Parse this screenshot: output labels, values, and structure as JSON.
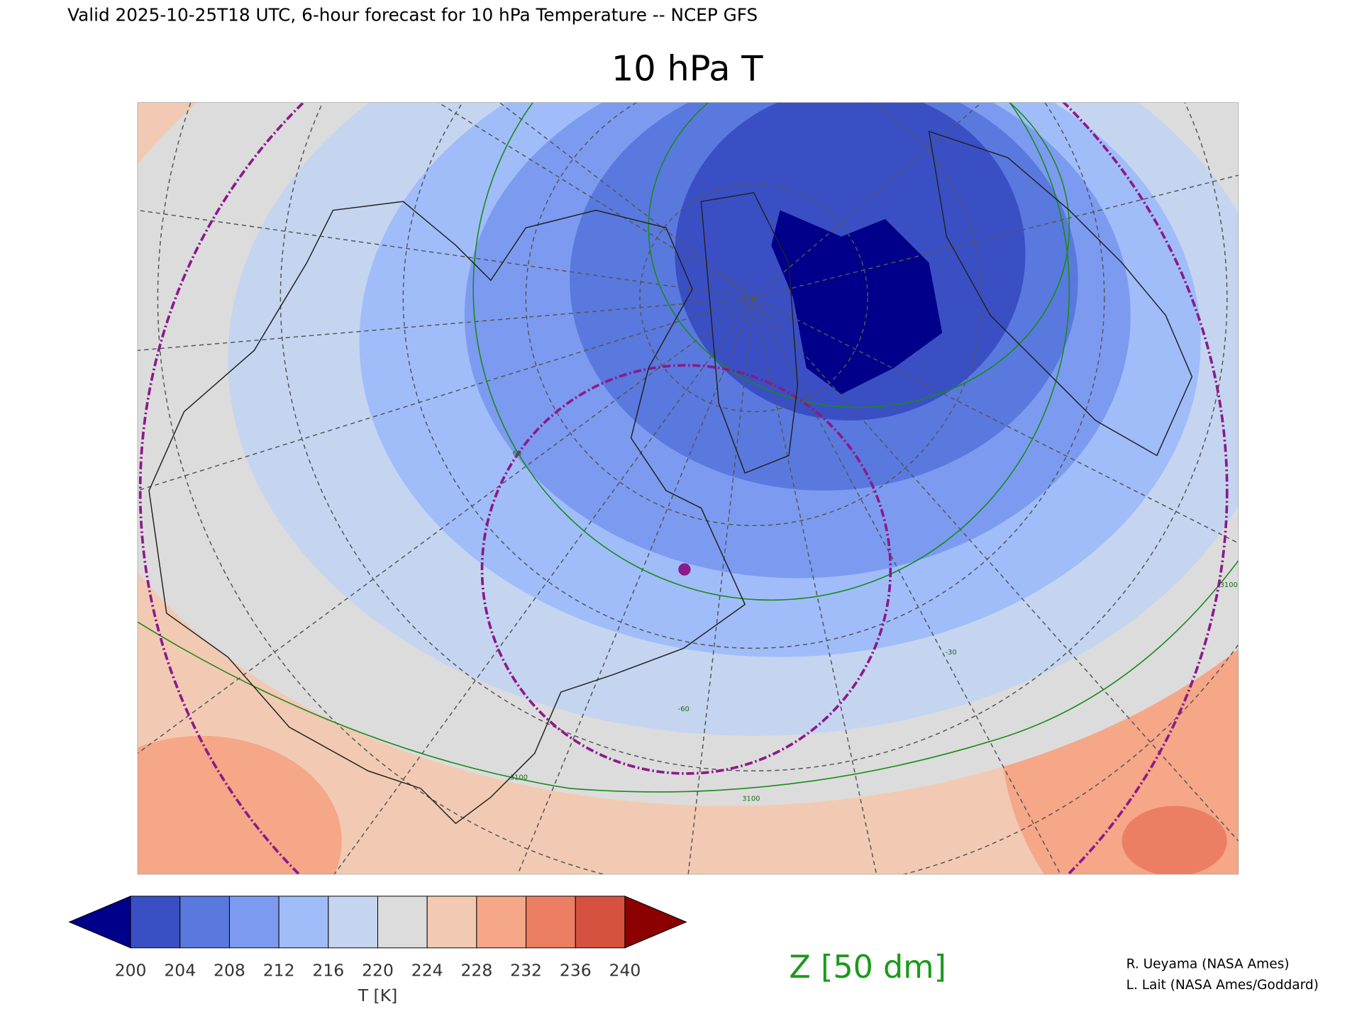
{
  "header": "Valid 2025-10-25T18 UTC, 6-hour forecast for 10 hPa Temperature -- NCEP GFS",
  "title": "10 hPa T",
  "contour_labels": [
    "3100",
    "3100",
    "3100",
    "-60",
    "-30",
    "60"
  ],
  "colorbar": {
    "ticks": [
      200,
      204,
      208,
      212,
      216,
      220,
      224,
      228,
      232,
      236,
      240
    ],
    "colors": [
      "#00008b",
      "#3a4fc4",
      "#5a79de",
      "#7c9bf0",
      "#a0bdfa",
      "#c5d5f0",
      "#dcdcdc",
      "#f2cab3",
      "#f5a788",
      "#ec7f63",
      "#d4523f",
      "#8b0000"
    ],
    "label": "T [K]"
  },
  "contour_legend": "Z [50 dm]",
  "credits": [
    "R. Ueyama (NASA Ames)",
    "L. Lait (NASA Ames/Goddard)"
  ]
}
